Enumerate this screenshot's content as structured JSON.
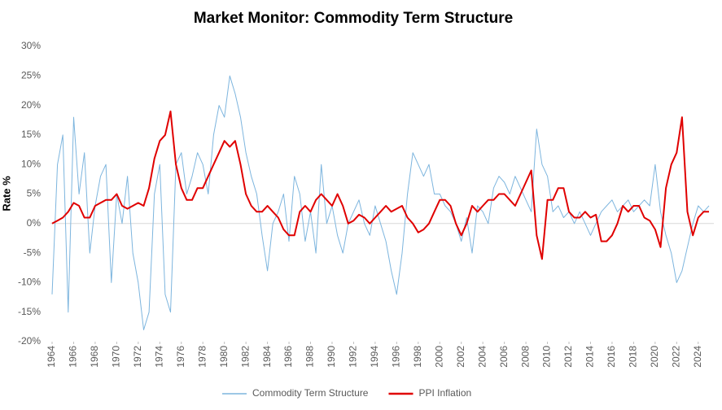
{
  "chart_data": {
    "type": "line",
    "title": "Market Monitor: Commodity Term Structure",
    "y_label": "Rate %",
    "x": [
      1964,
      1964.5,
      1965,
      1965.5,
      1966,
      1966.5,
      1967,
      1967.5,
      1968,
      1968.5,
      1969,
      1969.5,
      1970,
      1970.5,
      1971,
      1971.5,
      1972,
      1972.5,
      1973,
      1973.5,
      1974,
      1974.5,
      1975,
      1975.5,
      1976,
      1976.5,
      1977,
      1977.5,
      1978,
      1978.5,
      1979,
      1979.5,
      1980,
      1980.5,
      1981,
      1981.5,
      1982,
      1982.5,
      1983,
      1983.5,
      1984,
      1984.5,
      1985,
      1985.5,
      1986,
      1986.5,
      1987,
      1987.5,
      1988,
      1988.5,
      1989,
      1989.5,
      1990,
      1990.5,
      1991,
      1991.5,
      1992,
      1992.5,
      1993,
      1993.5,
      1994,
      1994.5,
      1995,
      1995.5,
      1996,
      1996.5,
      1997,
      1997.5,
      1998,
      1998.5,
      1999,
      1999.5,
      2000,
      2000.5,
      2001,
      2001.5,
      2002,
      2002.5,
      2003,
      2003.5,
      2004,
      2004.5,
      2005,
      2005.5,
      2006,
      2006.5,
      2007,
      2007.5,
      2008,
      2008.5,
      2009,
      2009.5,
      2010,
      2010.5,
      2011,
      2011.5,
      2012,
      2012.5,
      2013,
      2013.5,
      2014,
      2014.5,
      2015,
      2015.5,
      2016,
      2016.5,
      2017,
      2017.5,
      2018,
      2018.5,
      2019,
      2019.5,
      2020,
      2020.5,
      2021,
      2021.5,
      2022,
      2022.5,
      2023,
      2023.5,
      2024,
      2024.5,
      2025
    ],
    "series": [
      {
        "name": "Commodity Term Structure",
        "color": "#7db5de",
        "width": 1,
        "values": [
          -12,
          10,
          15,
          -15,
          18,
          5,
          12,
          -5,
          3,
          8,
          10,
          -10,
          5,
          0,
          8,
          -5,
          -10,
          -18,
          -15,
          5,
          10,
          -12,
          -15,
          10,
          12,
          5,
          8,
          12,
          10,
          5,
          15,
          20,
          18,
          25,
          22,
          18,
          12,
          8,
          5,
          -2,
          -8,
          0,
          2,
          5,
          -3,
          8,
          5,
          -3,
          2,
          -5,
          10,
          0,
          3,
          -2,
          -5,
          0,
          2,
          4,
          0,
          -2,
          3,
          0,
          -3,
          -8,
          -12,
          -5,
          5,
          12,
          10,
          8,
          10,
          5,
          5,
          3,
          2,
          0,
          -3,
          1,
          -5,
          3,
          2,
          0,
          6,
          8,
          7,
          5,
          8,
          6,
          4,
          2,
          16,
          10,
          8,
          2,
          3,
          1,
          2,
          0,
          2,
          0,
          -2,
          0,
          2,
          3,
          4,
          2,
          3,
          4,
          2,
          3,
          4,
          3,
          10,
          2,
          -2,
          -5,
          -10,
          -8,
          -4,
          0,
          3,
          2,
          3
        ]
      },
      {
        "name": "PPI Inflation",
        "color": "#e00000",
        "width": 2,
        "values": [
          0,
          0.5,
          1,
          2,
          3.5,
          3,
          1,
          1,
          3,
          3.5,
          4,
          4,
          5,
          3,
          2.5,
          3,
          3.5,
          3,
          6,
          11,
          14,
          15,
          19,
          10,
          6,
          4,
          4,
          6,
          6,
          8,
          10,
          12,
          14,
          13,
          14,
          10,
          5,
          3,
          2,
          2,
          3,
          2,
          1,
          -1,
          -2,
          -2,
          2,
          3,
          2,
          4,
          5,
          4,
          3,
          5,
          3,
          0,
          0.5,
          1.5,
          1,
          0,
          1,
          2,
          3,
          2,
          2.5,
          3,
          1,
          0,
          -1.5,
          -1,
          0,
          2,
          4,
          4,
          3,
          0,
          -2,
          0,
          3,
          2,
          3,
          4,
          4,
          5,
          5,
          4,
          3,
          5,
          7,
          9,
          -2,
          -6,
          4,
          4,
          6,
          6,
          2,
          1,
          1,
          2,
          1,
          1.5,
          -3,
          -3,
          -2,
          0,
          3,
          2,
          3,
          3,
          1,
          0.5,
          -1,
          -4,
          6,
          10,
          12,
          18,
          2,
          -2,
          1,
          2,
          2
        ]
      }
    ],
    "xlim": [
      1964,
      2025
    ],
    "xticks": [
      1964,
      1966,
      1968,
      1970,
      1972,
      1974,
      1976,
      1978,
      1980,
      1982,
      1984,
      1986,
      1988,
      1990,
      1992,
      1994,
      1996,
      1998,
      2000,
      2002,
      2004,
      2006,
      2008,
      2010,
      2012,
      2014,
      2016,
      2018,
      2020,
      2022,
      2024
    ],
    "ylim": [
      -20,
      30
    ],
    "yticks": [
      {
        "value": -20,
        "label": "-20%"
      },
      {
        "value": -15,
        "label": "-15%"
      },
      {
        "value": -10,
        "label": "-10%"
      },
      {
        "value": -5,
        "label": "-5%"
      },
      {
        "value": 0,
        "label": "0%"
      },
      {
        "value": 5,
        "label": "5%"
      },
      {
        "value": 10,
        "label": "10%"
      },
      {
        "value": 15,
        "label": "15%"
      },
      {
        "value": 20,
        "label": "20%"
      },
      {
        "value": 25,
        "label": "25%"
      },
      {
        "value": 30,
        "label": "30%"
      }
    ],
    "grid": false,
    "legend": "bottom"
  }
}
